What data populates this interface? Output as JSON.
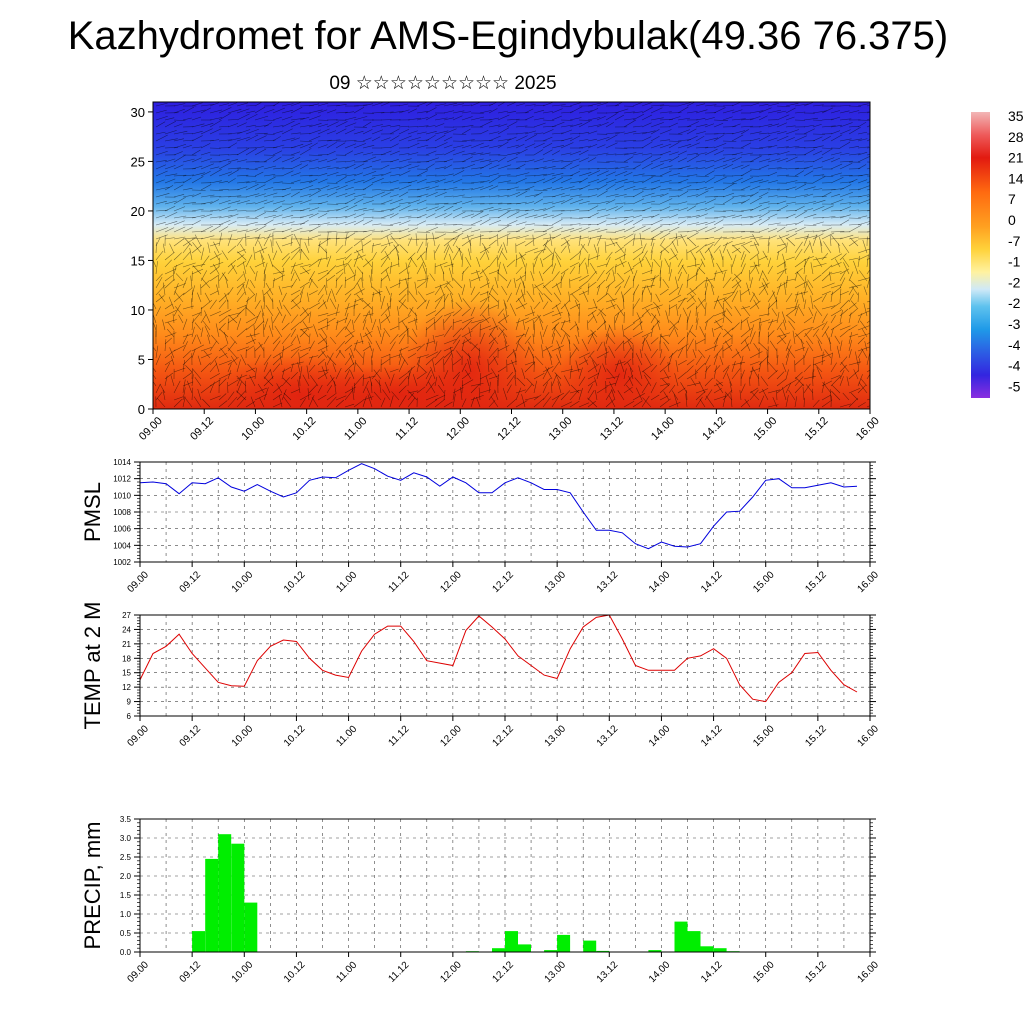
{
  "title": "Kazhydromet for AMS-Egindybulak(49.36 76.375)",
  "subtitle": "09 ☆☆☆☆☆☆☆☆☆ 2025",
  "chart_data": [
    {
      "type": "heatmap",
      "description": "vertical section of temperature with wind barbs",
      "x_tick_labels": [
        "09.00",
        "09.12",
        "10.00",
        "10.12",
        "11.00",
        "11.12",
        "12.00",
        "12.12",
        "13.00",
        "13.12",
        "14.00",
        "14.12",
        "15.00",
        "15.12",
        "16.00"
      ],
      "y_ticks": [
        0,
        5,
        10,
        15,
        20,
        25,
        30
      ],
      "ylim": [
        0,
        31
      ],
      "colorbar_labels": [
        "35",
        "28",
        "21",
        "14",
        "7",
        "0",
        "-7",
        "-1",
        "-2",
        "-2",
        "-3",
        "-4",
        "-4",
        "-5"
      ],
      "colors": {
        "cold": "#3a1fe0",
        "mid_blue": "#1e90e8",
        "light": "#d8ecf6",
        "yellow": "#ffd23a",
        "orange": "#ff8a1a",
        "red": "#e22a10"
      }
    },
    {
      "type": "line",
      "ylabel": "PMSL",
      "color": "#0000dd",
      "ylim": [
        1002,
        1014
      ],
      "y_ticks": [
        1002,
        1004,
        1006,
        1008,
        1010,
        1012,
        1014
      ],
      "x_tick_labels": [
        "09.00",
        "09.12",
        "10.00",
        "10.12",
        "11.00",
        "11.12",
        "12.00",
        "12.12",
        "13.00",
        "13.12",
        "14.00",
        "14.12",
        "15.00",
        "15.12",
        "16.00"
      ],
      "x": [
        0,
        3,
        6,
        9,
        12,
        15,
        18,
        21,
        24,
        27,
        30,
        33,
        36,
        39,
        42,
        45,
        48,
        51,
        54,
        57,
        60,
        63,
        66,
        69,
        72,
        75,
        78,
        81,
        84,
        87,
        90,
        93,
        96,
        99,
        102,
        105,
        108,
        111,
        114,
        117,
        120,
        123,
        126,
        129,
        132,
        135,
        138,
        141,
        144,
        147,
        150,
        153,
        156,
        159,
        162,
        165
      ],
      "values": [
        1011.5,
        1011.6,
        1011.4,
        1010.2,
        1011.5,
        1011.4,
        1012.1,
        1011.0,
        1010.5,
        1011.3,
        1010.5,
        1009.8,
        1010.3,
        1011.8,
        1012.2,
        1012.1,
        1013.0,
        1013.8,
        1013.2,
        1012.3,
        1011.8,
        1012.7,
        1012.2,
        1011.1,
        1012.2,
        1011.5,
        1010.3,
        1010.3,
        1011.5,
        1012.1,
        1011.5,
        1010.7,
        1010.7,
        1010.3,
        1008.0,
        1005.8,
        1005.8,
        1005.5,
        1004.2,
        1003.6,
        1004.4,
        1003.9,
        1003.8,
        1004.2,
        1006.3,
        1008.0,
        1008.1,
        1009.8,
        1011.8,
        1012.0,
        1010.9,
        1010.9,
        1011.2,
        1011.5,
        1011.0,
        1011.1
      ]
    },
    {
      "type": "line",
      "ylabel": "TEMP at 2 M",
      "color": "#dd0000",
      "ylim": [
        6,
        27
      ],
      "y_ticks": [
        6,
        9,
        12,
        15,
        18,
        21,
        24,
        27
      ],
      "x_tick_labels": [
        "09.00",
        "09.12",
        "10.00",
        "10.12",
        "11.00",
        "11.12",
        "12.00",
        "12.12",
        "13.00",
        "13.12",
        "14.00",
        "14.12",
        "15.00",
        "15.12",
        "16.00"
      ],
      "x": [
        0,
        3,
        6,
        9,
        12,
        15,
        18,
        21,
        24,
        27,
        30,
        33,
        36,
        39,
        42,
        45,
        48,
        51,
        54,
        57,
        60,
        63,
        66,
        69,
        72,
        75,
        78,
        81,
        84,
        87,
        90,
        93,
        96,
        99,
        102,
        105,
        108,
        111,
        114,
        117,
        120,
        123,
        126,
        129,
        132,
        135,
        138,
        141,
        144,
        147,
        150,
        153,
        156,
        159,
        162,
        165
      ],
      "values": [
        13.5,
        19.0,
        20.5,
        23.0,
        19.0,
        16.0,
        13.0,
        12.3,
        12.2,
        17.5,
        20.5,
        21.8,
        21.5,
        18.0,
        15.5,
        14.5,
        14.0,
        19.5,
        23.0,
        24.7,
        24.7,
        21.5,
        17.5,
        17.0,
        16.5,
        23.8,
        26.8,
        24.5,
        22.0,
        18.5,
        16.5,
        14.5,
        13.8,
        20.0,
        24.5,
        26.5,
        27.0,
        22.0,
        16.5,
        15.5,
        15.5,
        15.5,
        18.0,
        18.5,
        20.0,
        18.0,
        12.5,
        9.5,
        9.0,
        13.0,
        15.0,
        19.0,
        19.2,
        15.5,
        12.5,
        11.0
      ]
    },
    {
      "type": "bar",
      "ylabel": "PRECIP, mm",
      "color": "#00ee00",
      "ylim": [
        0,
        3.5
      ],
      "y_ticks": [
        "0.0",
        "0.5",
        "1.0",
        "1.5",
        "2.0",
        "2.5",
        "3.0",
        "3.5"
      ],
      "x_tick_labels": [
        "09.00",
        "09.12",
        "10.00",
        "10.12",
        "11.00",
        "11.12",
        "12.00",
        "12.12",
        "13.00",
        "13.12",
        "14.00",
        "14.12",
        "15.00",
        "15.12",
        "16.00"
      ],
      "x": [
        3,
        6,
        9,
        12,
        15,
        18,
        21,
        24,
        27,
        30,
        33,
        36,
        39,
        42,
        45,
        48,
        51,
        54,
        57,
        60,
        63,
        66,
        69,
        72,
        75,
        78,
        81,
        84,
        87,
        90,
        93,
        96,
        99,
        102,
        105,
        108,
        111,
        114,
        117,
        120,
        123,
        126,
        129,
        132,
        135,
        138,
        141,
        144,
        147,
        150,
        153,
        156,
        159,
        162,
        165,
        168
      ],
      "values": [
        0,
        0,
        0,
        0,
        0.55,
        2.45,
        3.1,
        2.85,
        1.3,
        0,
        0,
        0,
        0,
        0,
        0,
        0,
        0,
        0,
        0,
        0,
        0,
        0,
        0,
        0,
        0,
        0.02,
        0,
        0.1,
        0.55,
        0.2,
        0,
        0.05,
        0.45,
        0,
        0.3,
        0.03,
        0,
        0,
        0,
        0.05,
        0,
        0.8,
        0.55,
        0.15,
        0.1,
        0.02,
        0,
        0,
        0,
        0,
        0,
        0,
        0,
        0,
        0,
        0
      ]
    }
  ]
}
